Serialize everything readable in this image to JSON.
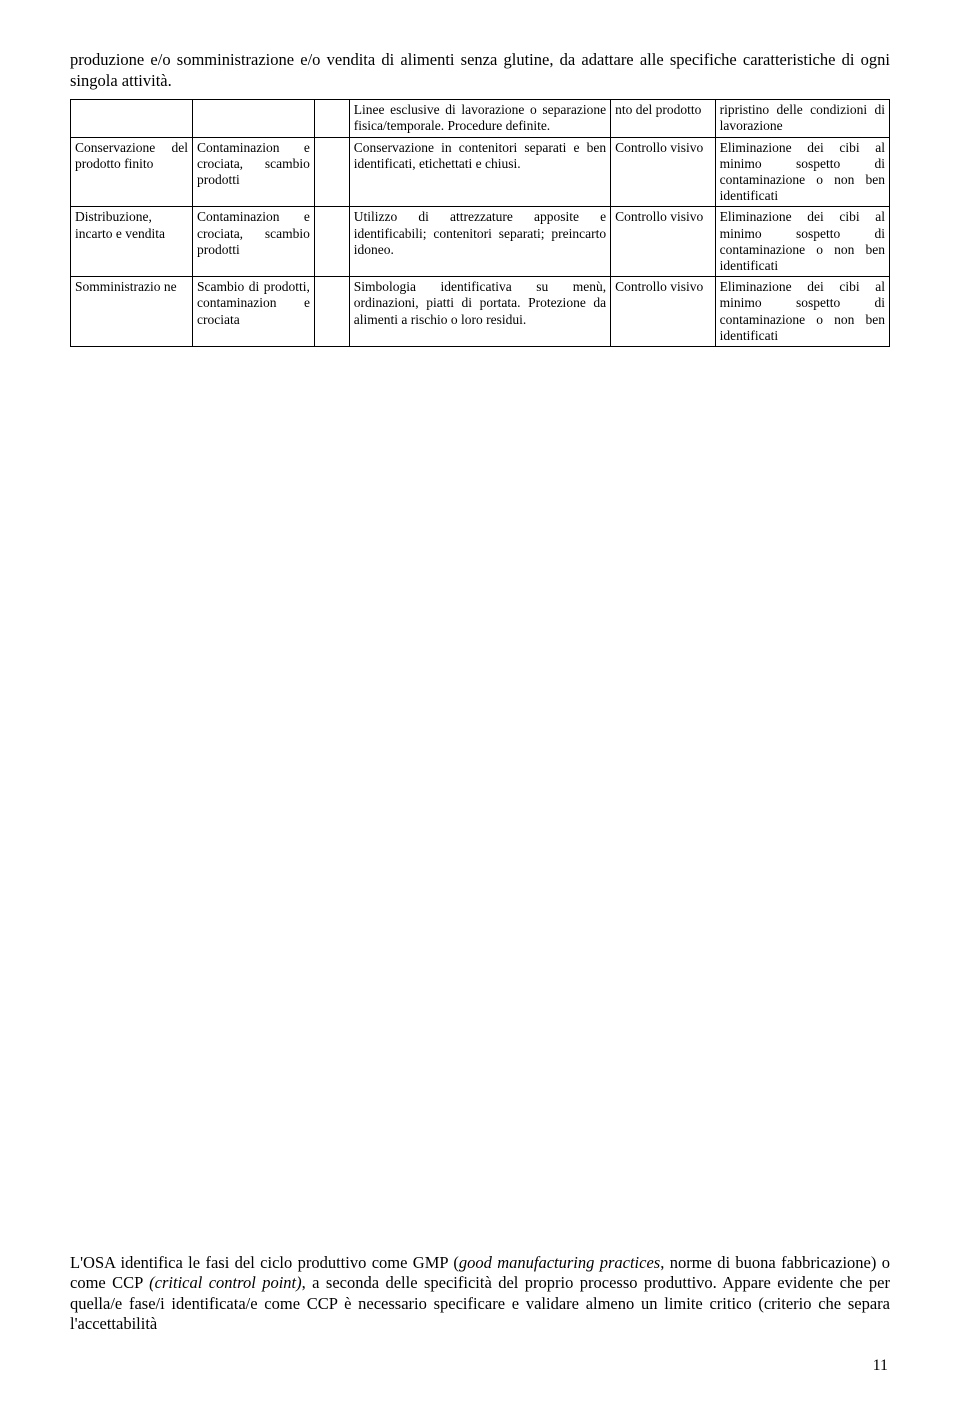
{
  "intro_text": "produzione e/o somministrazione e/o vendita di alimenti senza glutine, da adattare alle specifiche caratteristiche di ogni singola attività.",
  "rows": [
    {
      "c1": "",
      "c2": "",
      "c3": "",
      "c4": "Linee esclusive di lavorazione o separazione fisica/temporale. Procedure definite.",
      "c5": "nto del prodotto",
      "c6": "ripristino delle condizioni di lavorazione"
    },
    {
      "c1": "Conservazione del prodotto finito",
      "c2": "Contaminazion e crociata, scambio prodotti",
      "c3": "",
      "c4": "Conservazione in contenitori separati e ben identificati, etichettati e chiusi.",
      "c5": "Controllo visivo",
      "c6": "Eliminazione dei cibi al minimo sospetto di contaminazione o non ben identificati"
    },
    {
      "c1": "Distribuzione, incarto e vendita",
      "c2": "Contaminazion e crociata, scambio prodotti",
      "c3": "",
      "c4": "Utilizzo di attrezzature apposite e identificabili; contenitori separati; preincarto idoneo.",
      "c5": "Controllo visivo",
      "c6": "Eliminazione dei cibi al minimo sospetto di contaminazione o non ben identificati"
    },
    {
      "c1": "Somministrazio ne",
      "c2": "Scambio di prodotti, contaminazion e crociata",
      "c3": "",
      "c4": "Simbologia identificativa su menù, ordinazioni, piatti di portata. Protezione da alimenti a rischio o loro residui.",
      "c5": "Controllo visivo",
      "c6": "Eliminazione dei cibi al minimo sospetto di contaminazione o non ben identificati"
    }
  ],
  "bottom_para_prefix": "L'OSA identifica le fasi del ciclo produttivo come GMP (",
  "bottom_para_it1": "good manufacturing practices",
  "bottom_para_mid1": ", norme di buona fabbricazione) o come CCP ",
  "bottom_para_it2": "(critical control point)",
  "bottom_para_suffix": ", a seconda delle specificità del proprio processo produttivo. Appare evidente che per quella/e fase/i identificata/e come CCP è necessario specificare e validare almeno un limite critico (criterio che separa l'accettabilità",
  "page_number": "11"
}
